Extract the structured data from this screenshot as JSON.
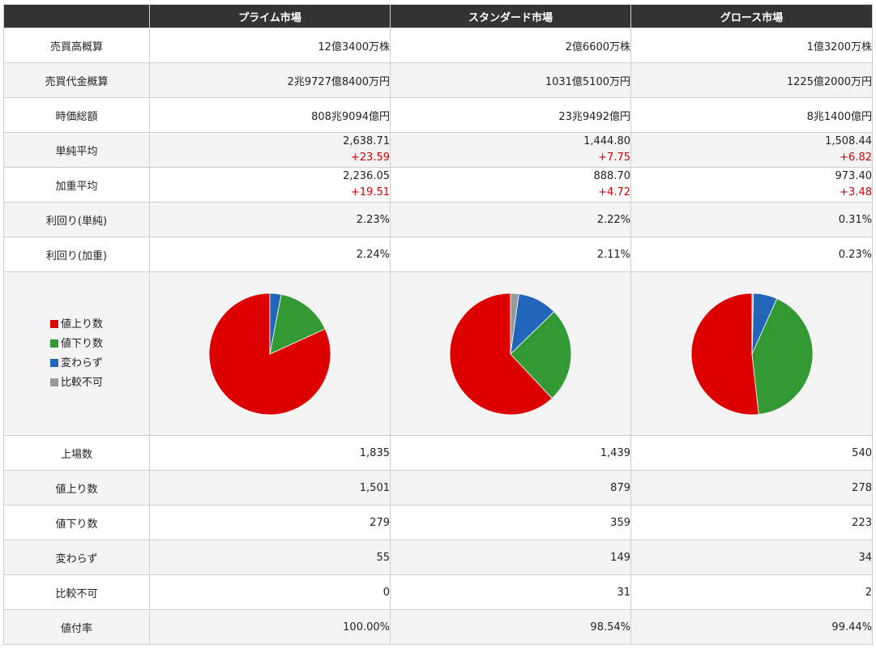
{
  "markets": [
    "プライム市場",
    "スタンダード市場",
    "グロース市場"
  ],
  "rows": [
    {
      "label": "売買高概算",
      "values": [
        "12億3400万株",
        "2億6600万株",
        "1億3200万株"
      ]
    },
    {
      "label": "売買代金概算",
      "values": [
        "2兆9727億8400万円",
        "1031億5100万円",
        "1225億2000万円"
      ]
    },
    {
      "label": "時価総額",
      "values": [
        "808兆9094億円",
        "23兆9492億円",
        "8兆1400億円"
      ]
    },
    {
      "label": "単純平均",
      "values": [
        "2,638.71",
        "1,444.80",
        "1,508.44"
      ],
      "deltas": [
        "+23.59",
        "+7.75",
        "+6.82"
      ]
    },
    {
      "label": "加重平均",
      "values": [
        "2,236.05",
        "888.70",
        "973.40"
      ],
      "deltas": [
        "+19.51",
        "+4.72",
        "+3.48"
      ]
    },
    {
      "label": "利回り(単純)",
      "values": [
        "2.23%",
        "2.22%",
        "0.31%"
      ]
    },
    {
      "label": "利回り(加重)",
      "values": [
        "2.24%",
        "2.11%",
        "0.23%"
      ]
    }
  ],
  "bottom_rows": [
    {
      "label": "上場数",
      "values": [
        "1,835",
        "1,439",
        "540"
      ]
    },
    {
      "label": "値上り数",
      "values": [
        "1,501",
        "879",
        "278"
      ]
    },
    {
      "label": "値下り数",
      "values": [
        "279",
        "359",
        "223"
      ]
    },
    {
      "label": "変わらず",
      "values": [
        "55",
        "149",
        "34"
      ]
    },
    {
      "label": "比較不可",
      "values": [
        "0",
        "31",
        "2"
      ]
    },
    {
      "label": "値付率",
      "values": [
        "100.00%",
        "98.54%",
        "99.44%"
      ]
    }
  ],
  "legend": [
    {
      "label": "値上り数",
      "color": "#dd0000"
    },
    {
      "label": "値下り数",
      "color": "#339933"
    },
    {
      "label": "変わらず",
      "color": "#2266bb"
    },
    {
      "label": "比較不可",
      "color": "#999999"
    }
  ],
  "chart_data": {
    "type": "pie",
    "categories": [
      "値上り数",
      "値下り数",
      "変わらず",
      "比較不可"
    ],
    "colors": [
      "#dd0000",
      "#339933",
      "#2266bb",
      "#999999"
    ],
    "series": [
      {
        "name": "プライム市場",
        "values": [
          1501,
          279,
          55,
          0
        ]
      },
      {
        "name": "スタンダード市場",
        "values": [
          879,
          359,
          149,
          31
        ]
      },
      {
        "name": "グロース市場",
        "values": [
          278,
          223,
          34,
          2
        ]
      }
    ]
  }
}
